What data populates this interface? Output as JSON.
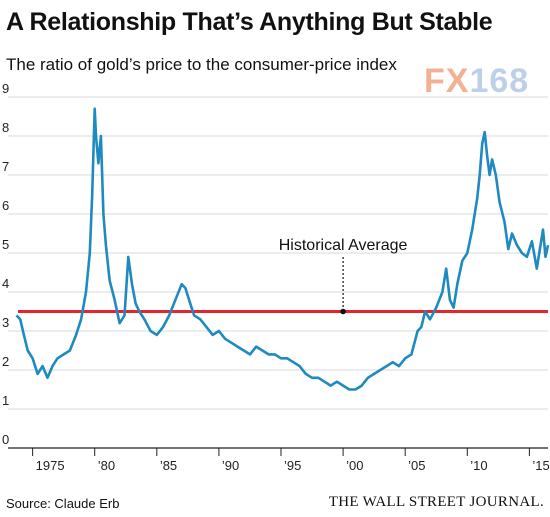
{
  "header": {
    "title": "A Relationship That’s Anything But Stable",
    "subtitle": "The ratio of gold’s price to the consumer-price index"
  },
  "logo": {
    "part1": "FX",
    "part2": "168"
  },
  "footer": {
    "source": "Source: Claude Erb",
    "publisher": "THE WALL STREET JOURNAL."
  },
  "colors": {
    "line": "#1f8ac0",
    "average": "#e8242a",
    "grid": "#d9d9d9"
  },
  "chart_data": {
    "type": "line",
    "title": "A Relationship That’s Anything But Stable",
    "subtitle": "The ratio of gold’s price to the consumer-price index",
    "xlim": [
      1973.5,
      2016.5
    ],
    "ylim": [
      0,
      9
    ],
    "yticks": [
      0,
      1,
      2,
      3,
      4,
      5,
      6,
      7,
      8,
      9
    ],
    "xtick_positions": [
      1975,
      1980,
      1985,
      1990,
      1995,
      2000,
      2005,
      2010,
      2015
    ],
    "xtick_labels": [
      "1975",
      "’80",
      "’85",
      "’90",
      "’95",
      "’00",
      "’05",
      "’10",
      "’15"
    ],
    "grid": "horizontal",
    "annotation": {
      "label": "Historical Average",
      "value": 3.5,
      "x": 2000
    },
    "series": [
      {
        "x": [
          1973.7,
          1974.0,
          1974.3,
          1974.6,
          1975.0,
          1975.4,
          1975.8,
          1976.2,
          1976.6,
          1977.0,
          1977.5,
          1978.0,
          1978.5,
          1978.9,
          1979.3,
          1979.6,
          1979.8,
          1980.0,
          1980.1,
          1980.3,
          1980.5,
          1980.7,
          1980.9,
          1981.2,
          1981.6,
          1982.0,
          1982.4,
          1982.7,
          1983.0,
          1983.3,
          1983.6,
          1984.0,
          1984.5,
          1985.0,
          1985.5,
          1986.0,
          1986.5,
          1987.0,
          1987.3,
          1987.7,
          1988.0,
          1988.5,
          1989.0,
          1989.5,
          1990.0,
          1990.5,
          1991.0,
          1991.5,
          1992.0,
          1992.5,
          1993.0,
          1993.5,
          1994.0,
          1994.5,
          1995.0,
          1995.5,
          1996.0,
          1996.5,
          1997.0,
          1997.5,
          1998.0,
          1998.5,
          1999.0,
          1999.5,
          2000.0,
          2000.5,
          2001.0,
          2001.5,
          2002.0,
          2002.5,
          2003.0,
          2003.5,
          2004.0,
          2004.5,
          2005.0,
          2005.5,
          2006.0,
          2006.3,
          2006.6,
          2007.0,
          2007.5,
          2008.0,
          2008.3,
          2008.6,
          2008.9,
          2009.2,
          2009.6,
          2010.0,
          2010.4,
          2010.8,
          2011.0,
          2011.2,
          2011.4,
          2011.6,
          2011.8,
          2012.0,
          2012.3,
          2012.6,
          2013.0,
          2013.3,
          2013.6,
          2014.0,
          2014.4,
          2014.8,
          2015.2,
          2015.6,
          2015.9,
          2016.1,
          2016.3,
          2016.5
        ],
        "y": [
          3.4,
          3.3,
          2.9,
          2.5,
          2.3,
          1.9,
          2.1,
          1.8,
          2.1,
          2.3,
          2.4,
          2.5,
          2.9,
          3.3,
          4.0,
          5.0,
          6.5,
          8.7,
          8.0,
          7.3,
          8.0,
          6.0,
          5.2,
          4.3,
          3.8,
          3.2,
          3.4,
          4.9,
          4.2,
          3.7,
          3.5,
          3.3,
          3.0,
          2.9,
          3.1,
          3.4,
          3.8,
          4.2,
          4.1,
          3.7,
          3.4,
          3.3,
          3.1,
          2.9,
          3.0,
          2.8,
          2.7,
          2.6,
          2.5,
          2.4,
          2.6,
          2.5,
          2.4,
          2.4,
          2.3,
          2.3,
          2.2,
          2.1,
          1.9,
          1.8,
          1.8,
          1.7,
          1.6,
          1.7,
          1.6,
          1.5,
          1.5,
          1.6,
          1.8,
          1.9,
          2.0,
          2.1,
          2.2,
          2.1,
          2.3,
          2.4,
          3.0,
          3.1,
          3.5,
          3.3,
          3.6,
          4.0,
          4.6,
          3.8,
          3.6,
          4.2,
          4.8,
          5.0,
          5.6,
          6.4,
          7.0,
          7.8,
          8.1,
          7.5,
          7.0,
          7.4,
          7.0,
          6.3,
          5.8,
          5.1,
          5.5,
          5.2,
          5.0,
          4.9,
          5.3,
          4.6,
          5.2,
          5.6,
          4.9,
          5.2
        ]
      }
    ]
  }
}
